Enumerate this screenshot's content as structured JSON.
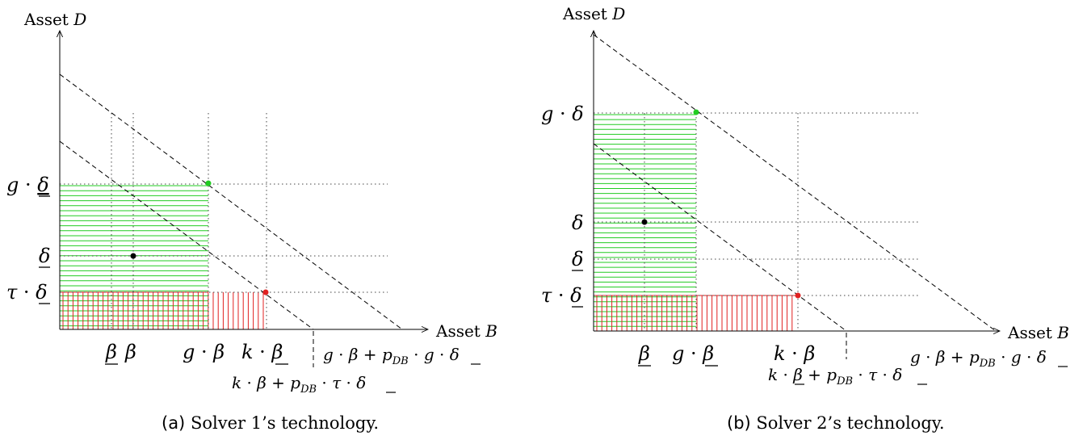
{
  "panels": [
    {
      "id": "a",
      "axis_y_label_prefix": "Asset ",
      "axis_y_label_var": "D",
      "axis_x_label_prefix": "Asset ",
      "axis_x_label_var": "B",
      "y_ticks": [
        {
          "id": "g_delta_low",
          "text": "g · δ"
        },
        {
          "id": "delta_low",
          "text": "δ"
        },
        {
          "id": "tau_delta_low",
          "text": "τ · δ"
        }
      ],
      "x_ticks": [
        {
          "id": "beta_low",
          "text": "β"
        },
        {
          "id": "beta",
          "text": "β"
        },
        {
          "id": "g_beta",
          "text": "g · β"
        },
        {
          "id": "k_beta_low",
          "text": "k · β"
        }
      ],
      "intercept_labels": [
        {
          "id": "upper",
          "text": "g · β + pDB · g · δ"
        },
        {
          "id": "lower",
          "text": "k · β + pDB · τ · δ"
        }
      ],
      "caption_tag": "(a)",
      "caption_text": "Solver 1’s technology."
    },
    {
      "id": "b",
      "axis_y_label_prefix": "Asset ",
      "axis_y_label_var": "D",
      "axis_x_label_prefix": "Asset ",
      "axis_x_label_var": "B",
      "y_ticks": [
        {
          "id": "g_delta",
          "text": "g · δ"
        },
        {
          "id": "delta",
          "text": "δ"
        },
        {
          "id": "delta_low",
          "text": "δ"
        },
        {
          "id": "tau_delta_low",
          "text": "τ · δ"
        }
      ],
      "x_ticks": [
        {
          "id": "beta_low",
          "text": "β"
        },
        {
          "id": "g_beta_low",
          "text": "g · β"
        },
        {
          "id": "k_beta",
          "text": "k · β"
        }
      ],
      "intercept_labels": [
        {
          "id": "upper",
          "text": "g · β + pDB · g · δ"
        },
        {
          "id": "lower",
          "text": "k · β + pDB · τ · δ"
        }
      ],
      "caption_tag": "(b)",
      "caption_text": "Solver 2’s technology."
    }
  ],
  "colors": {
    "green": "#22cc22",
    "red": "#e02020",
    "black": "#000000",
    "grid": "#444444"
  }
}
